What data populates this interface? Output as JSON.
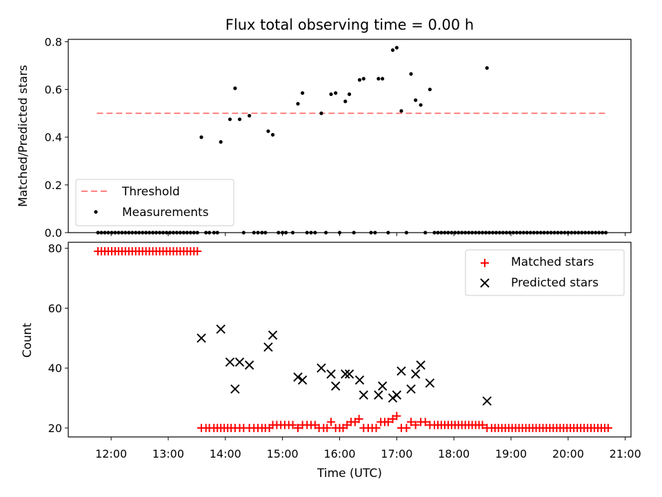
{
  "chart_data": {
    "title": "Flux total observing time = 0.00 h",
    "xlabel": "Time (UTC)",
    "x_tick_labels": [
      "12:00",
      "13:00",
      "14:00",
      "15:00",
      "16:00",
      "17:00",
      "18:00",
      "19:00",
      "20:00",
      "21:00"
    ],
    "x_ticks_hours": [
      12,
      13,
      14,
      15,
      16,
      17,
      18,
      19,
      20,
      21
    ],
    "xlim_hours": [
      11.25,
      21.1
    ],
    "panels": [
      {
        "type": "scatter",
        "ylabel": "Matched/Predicted stars",
        "ylim": [
          0,
          0.81
        ],
        "y_ticks": [
          0.0,
          0.2,
          0.4,
          0.6,
          0.8
        ],
        "y_tick_labels": [
          "0.0",
          "0.2",
          "0.4",
          "0.6",
          "0.8"
        ],
        "legend_position": "lower-left",
        "threshold": {
          "name": "Threshold",
          "y": 0.5,
          "x_range_hours": [
            11.75,
            20.65
          ],
          "color": "#ff7f7f"
        },
        "measurements": {
          "name": "Measurements",
          "color": "#000000",
          "zero_times_hours": [
            11.77,
            11.83,
            11.89,
            11.95,
            12.01,
            12.07,
            12.13,
            12.19,
            12.25,
            12.31,
            12.37,
            12.43,
            12.49,
            12.55,
            12.61,
            12.67,
            12.73,
            12.79,
            12.85,
            12.91,
            12.97,
            13.03,
            13.09,
            13.15,
            13.21,
            13.27,
            13.33,
            13.39,
            13.45,
            13.51,
            13.66,
            13.72,
            13.8,
            13.86,
            14.32,
            14.5,
            14.57,
            14.64,
            14.7,
            14.93,
            15.0,
            15.06,
            15.18,
            15.43,
            15.5,
            15.57,
            15.76,
            16.0,
            16.25,
            16.55,
            16.62,
            16.85,
            17.17,
            17.5,
            17.66,
            17.72,
            17.78,
            17.84,
            17.9,
            17.96,
            18.02,
            18.08,
            18.14,
            18.2,
            18.26,
            18.32,
            18.38,
            18.44,
            18.5,
            18.56,
            18.62,
            18.68,
            18.74,
            18.8,
            18.86,
            18.92,
            18.98,
            19.04,
            19.1,
            19.16,
            19.22,
            19.28,
            19.34,
            19.4,
            19.46,
            19.52,
            19.58,
            19.64,
            19.7,
            19.76,
            19.82,
            19.88,
            19.94,
            20.0,
            20.06,
            20.12,
            20.18,
            20.24,
            20.3,
            20.36,
            20.42,
            20.48,
            20.54,
            20.6,
            20.66
          ],
          "points": [
            {
              "x": 13.58,
              "y": 0.4
            },
            {
              "x": 13.92,
              "y": 0.38
            },
            {
              "x": 14.08,
              "y": 0.475
            },
            {
              "x": 14.17,
              "y": 0.605
            },
            {
              "x": 14.25,
              "y": 0.475
            },
            {
              "x": 14.42,
              "y": 0.49
            },
            {
              "x": 14.75,
              "y": 0.425
            },
            {
              "x": 14.83,
              "y": 0.41
            },
            {
              "x": 15.27,
              "y": 0.54
            },
            {
              "x": 15.35,
              "y": 0.585
            },
            {
              "x": 15.68,
              "y": 0.5
            },
            {
              "x": 15.85,
              "y": 0.58
            },
            {
              "x": 15.93,
              "y": 0.585
            },
            {
              "x": 16.1,
              "y": 0.55
            },
            {
              "x": 16.17,
              "y": 0.58
            },
            {
              "x": 16.35,
              "y": 0.64
            },
            {
              "x": 16.42,
              "y": 0.645
            },
            {
              "x": 16.68,
              "y": 0.645
            },
            {
              "x": 16.75,
              "y": 0.645
            },
            {
              "x": 16.93,
              "y": 0.765
            },
            {
              "x": 17.0,
              "y": 0.775
            },
            {
              "x": 17.08,
              "y": 0.51
            },
            {
              "x": 17.25,
              "y": 0.665
            },
            {
              "x": 17.33,
              "y": 0.555
            },
            {
              "x": 17.42,
              "y": 0.535
            },
            {
              "x": 17.58,
              "y": 0.6
            },
            {
              "x": 18.58,
              "y": 0.69
            }
          ]
        }
      },
      {
        "type": "scatter",
        "ylabel": "Count",
        "ylim": [
          17,
          82
        ],
        "y_ticks": [
          20,
          40,
          60,
          80
        ],
        "y_tick_labels": [
          "20",
          "40",
          "60",
          "80"
        ],
        "legend_position": "top-right",
        "series": [
          {
            "name": "Matched stars",
            "marker": "plus",
            "color": "#ff0000",
            "high_times_hours": [
              11.77,
              11.83,
              11.89,
              11.95,
              12.01,
              12.07,
              12.13,
              12.19,
              12.25,
              12.31,
              12.37,
              12.43,
              12.49,
              12.55,
              12.61,
              12.67,
              12.73,
              12.79,
              12.85,
              12.91,
              12.97,
              13.03,
              13.09,
              13.15,
              13.21,
              13.27,
              13.33,
              13.39,
              13.45,
              13.51
            ],
            "high_value": 79,
            "points": [
              {
                "x": 13.58,
                "y": 20
              },
              {
                "x": 13.66,
                "y": 20
              },
              {
                "x": 13.72,
                "y": 20
              },
              {
                "x": 13.8,
                "y": 20
              },
              {
                "x": 13.86,
                "y": 20
              },
              {
                "x": 13.92,
                "y": 20
              },
              {
                "x": 13.98,
                "y": 20
              },
              {
                "x": 14.04,
                "y": 20
              },
              {
                "x": 14.1,
                "y": 20
              },
              {
                "x": 14.17,
                "y": 20
              },
              {
                "x": 14.25,
                "y": 20
              },
              {
                "x": 14.32,
                "y": 20
              },
              {
                "x": 14.42,
                "y": 20
              },
              {
                "x": 14.5,
                "y": 20
              },
              {
                "x": 14.57,
                "y": 20
              },
              {
                "x": 14.64,
                "y": 20
              },
              {
                "x": 14.7,
                "y": 20
              },
              {
                "x": 14.77,
                "y": 20
              },
              {
                "x": 14.83,
                "y": 21
              },
              {
                "x": 14.9,
                "y": 21
              },
              {
                "x": 14.97,
                "y": 21
              },
              {
                "x": 15.04,
                "y": 21
              },
              {
                "x": 15.11,
                "y": 21
              },
              {
                "x": 15.18,
                "y": 21
              },
              {
                "x": 15.27,
                "y": 20
              },
              {
                "x": 15.35,
                "y": 21
              },
              {
                "x": 15.43,
                "y": 21
              },
              {
                "x": 15.5,
                "y": 21
              },
              {
                "x": 15.57,
                "y": 21
              },
              {
                "x": 15.64,
                "y": 20
              },
              {
                "x": 15.72,
                "y": 20
              },
              {
                "x": 15.78,
                "y": 20
              },
              {
                "x": 15.85,
                "y": 22
              },
              {
                "x": 15.93,
                "y": 20
              },
              {
                "x": 16.0,
                "y": 20
              },
              {
                "x": 16.06,
                "y": 20
              },
              {
                "x": 16.13,
                "y": 21
              },
              {
                "x": 16.2,
                "y": 22
              },
              {
                "x": 16.27,
                "y": 22
              },
              {
                "x": 16.34,
                "y": 23
              },
              {
                "x": 16.42,
                "y": 20
              },
              {
                "x": 16.5,
                "y": 20
              },
              {
                "x": 16.57,
                "y": 20
              },
              {
                "x": 16.64,
                "y": 20
              },
              {
                "x": 16.72,
                "y": 22
              },
              {
                "x": 16.79,
                "y": 22
              },
              {
                "x": 16.85,
                "y": 22
              },
              {
                "x": 16.93,
                "y": 23
              },
              {
                "x": 17.0,
                "y": 24
              },
              {
                "x": 17.08,
                "y": 20
              },
              {
                "x": 17.17,
                "y": 20
              },
              {
                "x": 17.25,
                "y": 22
              },
              {
                "x": 17.33,
                "y": 21
              },
              {
                "x": 17.42,
                "y": 22
              },
              {
                "x": 17.5,
                "y": 22
              },
              {
                "x": 17.58,
                "y": 21
              },
              {
                "x": 17.66,
                "y": 21
              },
              {
                "x": 17.72,
                "y": 21
              },
              {
                "x": 17.78,
                "y": 21
              },
              {
                "x": 17.84,
                "y": 21
              },
              {
                "x": 17.9,
                "y": 21
              },
              {
                "x": 17.96,
                "y": 21
              },
              {
                "x": 18.02,
                "y": 21
              },
              {
                "x": 18.08,
                "y": 21
              },
              {
                "x": 18.14,
                "y": 21
              },
              {
                "x": 18.2,
                "y": 21
              },
              {
                "x": 18.26,
                "y": 21
              },
              {
                "x": 18.32,
                "y": 21
              },
              {
                "x": 18.38,
                "y": 21
              },
              {
                "x": 18.44,
                "y": 21
              },
              {
                "x": 18.5,
                "y": 21
              },
              {
                "x": 18.58,
                "y": 20
              }
            ],
            "low_times_hours": [
              18.66,
              18.72,
              18.78,
              18.84,
              18.9,
              18.96,
              19.02,
              19.08,
              19.14,
              19.2,
              19.26,
              19.32,
              19.38,
              19.44,
              19.5,
              19.56,
              19.62,
              19.68,
              19.74,
              19.8,
              19.86,
              19.92,
              19.98,
              20.04,
              20.1,
              20.16,
              20.22,
              20.28,
              20.34,
              20.4,
              20.46,
              20.52,
              20.58,
              20.64,
              20.7
            ],
            "low_value": 20
          },
          {
            "name": "Predicted stars",
            "marker": "x",
            "color": "#000000",
            "points": [
              {
                "x": 13.58,
                "y": 50
              },
              {
                "x": 13.92,
                "y": 53
              },
              {
                "x": 14.08,
                "y": 42
              },
              {
                "x": 14.17,
                "y": 33
              },
              {
                "x": 14.25,
                "y": 42
              },
              {
                "x": 14.42,
                "y": 41
              },
              {
                "x": 14.75,
                "y": 47
              },
              {
                "x": 14.83,
                "y": 51
              },
              {
                "x": 15.27,
                "y": 37
              },
              {
                "x": 15.35,
                "y": 36
              },
              {
                "x": 15.68,
                "y": 40
              },
              {
                "x": 15.85,
                "y": 38
              },
              {
                "x": 15.93,
                "y": 34
              },
              {
                "x": 16.1,
                "y": 38
              },
              {
                "x": 16.17,
                "y": 38
              },
              {
                "x": 16.35,
                "y": 36
              },
              {
                "x": 16.42,
                "y": 31
              },
              {
                "x": 16.68,
                "y": 31
              },
              {
                "x": 16.75,
                "y": 34
              },
              {
                "x": 16.93,
                "y": 30
              },
              {
                "x": 17.0,
                "y": 31
              },
              {
                "x": 17.08,
                "y": 39
              },
              {
                "x": 17.25,
                "y": 33
              },
              {
                "x": 17.33,
                "y": 38
              },
              {
                "x": 17.42,
                "y": 41
              },
              {
                "x": 17.58,
                "y": 35
              },
              {
                "x": 18.58,
                "y": 29
              }
            ]
          }
        ]
      }
    ]
  }
}
